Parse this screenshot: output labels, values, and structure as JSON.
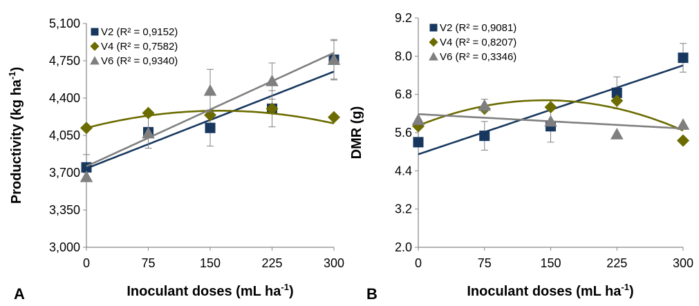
{
  "chart_data": [
    {
      "panel_label": "A",
      "type": "scatter",
      "xlabel": "Inoculant doses (mL ha⁻¹)",
      "ylabel": "Productivity (kg ha⁻¹)",
      "x": [
        0,
        75,
        150,
        225,
        300
      ],
      "x_tick_labels": [
        "0",
        "75",
        "150",
        "225",
        "300"
      ],
      "xlim": [
        0,
        300
      ],
      "ylim": [
        3000,
        5100
      ],
      "y_ticks": [
        3000,
        3350,
        3700,
        4050,
        4400,
        4750,
        5100
      ],
      "y_tick_labels": [
        "3,000",
        "3,350",
        "3,700",
        "4,050",
        "4,400",
        "4,750",
        "5,100"
      ],
      "grid": false,
      "legend_position": "top-left",
      "series": [
        {
          "name": "V2",
          "r2_label": "(R² = 0,9152)",
          "color": "#17375e",
          "marker": "square",
          "values": [
            3750,
            4080,
            4120,
            4300,
            4760
          ],
          "errors": [
            120,
            150,
            170,
            170,
            180
          ],
          "trend": {
            "kind": "linear",
            "coef": [
              3740,
              3.03
            ]
          }
        },
        {
          "name": "V4",
          "r2_label": "(R² = 0,7582)",
          "color": "#6b6b00",
          "marker": "diamond",
          "values": [
            4120,
            4260,
            4240,
            4300,
            4220
          ],
          "errors": [
            0,
            0,
            0,
            0,
            0
          ],
          "trend": {
            "kind": "quadratic",
            "coef": [
              4120,
              2.0,
              -0.0062
            ]
          }
        },
        {
          "name": "V6",
          "r2_label": "(R² = 0,9340)",
          "color": "#7f7f7f",
          "marker": "triangle",
          "values": [
            3660,
            4070,
            4470,
            4560,
            4760
          ],
          "errors": [
            0,
            0,
            200,
            170,
            190
          ],
          "trend": {
            "kind": "linear",
            "coef": [
              3760,
              3.55
            ]
          }
        }
      ]
    },
    {
      "panel_label": "B",
      "type": "scatter",
      "xlabel": "Inoculant doses (mL ha⁻¹)",
      "ylabel": "DMR (g)",
      "x": [
        0,
        75,
        150,
        225,
        300
      ],
      "x_tick_labels": [
        "0",
        "75",
        "150",
        "225",
        "300"
      ],
      "xlim": [
        0,
        300
      ],
      "ylim": [
        2.0,
        9.2
      ],
      "y_ticks": [
        2.0,
        3.2,
        4.4,
        5.6,
        6.8,
        8.0,
        9.2
      ],
      "y_tick_labels": [
        "2.0",
        "3.2",
        "4.4",
        "5.6",
        "6.8",
        "8.0",
        "9.2"
      ],
      "grid": false,
      "legend_position": "top-left",
      "series": [
        {
          "name": "V2",
          "r2_label": "(R² = 0,9081)",
          "color": "#17375e",
          "marker": "square",
          "values": [
            5.3,
            5.5,
            5.8,
            6.85,
            7.95
          ],
          "errors": [
            0,
            0.45,
            0.5,
            0.5,
            0.45
          ],
          "trend": {
            "kind": "linear",
            "coef": [
              4.92,
              0.0093
            ]
          }
        },
        {
          "name": "V4",
          "r2_label": "(R² = 0,8207)",
          "color": "#6b6b00",
          "marker": "diamond",
          "values": [
            5.8,
            6.35,
            6.4,
            6.6,
            5.35
          ],
          "errors": [
            0,
            0,
            0,
            0,
            0
          ],
          "trend": {
            "kind": "quadratic",
            "coef": [
              5.82,
              0.0111,
              -3.87e-05
            ]
          }
        },
        {
          "name": "V6",
          "r2_label": "(R² = 0,3346)",
          "color": "#7f7f7f",
          "marker": "triangle",
          "values": [
            6.0,
            6.45,
            5.95,
            5.55,
            5.85
          ],
          "errors": [
            0,
            0.2,
            0,
            0,
            0
          ],
          "trend": {
            "kind": "linear",
            "coef": [
              6.18,
              -0.0015
            ]
          }
        }
      ]
    }
  ]
}
